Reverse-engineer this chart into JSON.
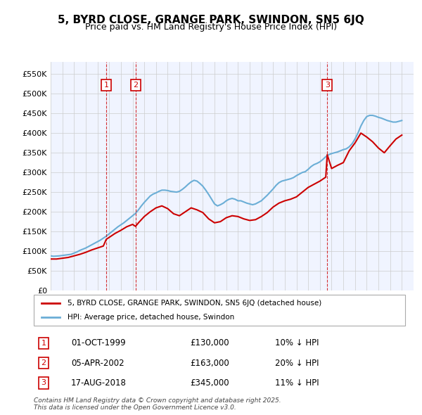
{
  "title": "5, BYRD CLOSE, GRANGE PARK, SWINDON, SN5 6JQ",
  "subtitle": "Price paid vs. HM Land Registry's House Price Index (HPI)",
  "legend_line1": "5, BYRD CLOSE, GRANGE PARK, SWINDON, SN5 6JQ (detached house)",
  "legend_line2": "HPI: Average price, detached house, Swindon",
  "footer": "Contains HM Land Registry data © Crown copyright and database right 2025.\nThis data is licensed under the Open Government Licence v3.0.",
  "ylim": [
    0,
    580000
  ],
  "yticks": [
    0,
    50000,
    100000,
    150000,
    200000,
    250000,
    300000,
    350000,
    400000,
    450000,
    500000,
    550000
  ],
  "ytick_labels": [
    "£0",
    "£50K",
    "£100K",
    "£150K",
    "£200K",
    "£250K",
    "£300K",
    "£350K",
    "£400K",
    "£450K",
    "£500K",
    "£550K"
  ],
  "xlim_start": 1995.0,
  "xlim_end": 2026.0,
  "sales": [
    {
      "num": 1,
      "date": "01-OCT-1999",
      "price": 130000,
      "hpi_diff": "10% ↓ HPI",
      "year": 1999.75
    },
    {
      "num": 2,
      "date": "05-APR-2002",
      "price": 163000,
      "hpi_diff": "20% ↓ HPI",
      "year": 2002.25
    },
    {
      "num": 3,
      "date": "17-AUG-2018",
      "price": 345000,
      "hpi_diff": "11% ↓ HPI",
      "year": 2018.625
    }
  ],
  "hpi_color": "#6baed6",
  "price_color": "#cc0000",
  "background_color": "#ffffff",
  "plot_bg_color": "#f0f4ff",
  "grid_color": "#cccccc",
  "marker_box_color": "#cc0000",
  "vline_color": "#cc0000",
  "hpi_data_x": [
    1995.0,
    1995.25,
    1995.5,
    1995.75,
    1996.0,
    1996.25,
    1996.5,
    1996.75,
    1997.0,
    1997.25,
    1997.5,
    1997.75,
    1998.0,
    1998.25,
    1998.5,
    1998.75,
    1999.0,
    1999.25,
    1999.5,
    1999.75,
    2000.0,
    2000.25,
    2000.5,
    2000.75,
    2001.0,
    2001.25,
    2001.5,
    2001.75,
    2002.0,
    2002.25,
    2002.5,
    2002.75,
    2003.0,
    2003.25,
    2003.5,
    2003.75,
    2004.0,
    2004.25,
    2004.5,
    2004.75,
    2005.0,
    2005.25,
    2005.5,
    2005.75,
    2006.0,
    2006.25,
    2006.5,
    2006.75,
    2007.0,
    2007.25,
    2007.5,
    2007.75,
    2008.0,
    2008.25,
    2008.5,
    2008.75,
    2009.0,
    2009.25,
    2009.5,
    2009.75,
    2010.0,
    2010.25,
    2010.5,
    2010.75,
    2011.0,
    2011.25,
    2011.5,
    2011.75,
    2012.0,
    2012.25,
    2012.5,
    2012.75,
    2013.0,
    2013.25,
    2013.5,
    2013.75,
    2014.0,
    2014.25,
    2014.5,
    2014.75,
    2015.0,
    2015.25,
    2015.5,
    2015.75,
    2016.0,
    2016.25,
    2016.5,
    2016.75,
    2017.0,
    2017.25,
    2017.5,
    2017.75,
    2018.0,
    2018.25,
    2018.5,
    2018.75,
    2019.0,
    2019.25,
    2019.5,
    2019.75,
    2020.0,
    2020.25,
    2020.5,
    2020.75,
    2021.0,
    2021.25,
    2021.5,
    2021.75,
    2022.0,
    2022.25,
    2022.5,
    2022.75,
    2023.0,
    2023.25,
    2023.5,
    2023.75,
    2024.0,
    2024.25,
    2024.5,
    2024.75,
    2025.0
  ],
  "hpi_data_y": [
    88000,
    87000,
    87500,
    88000,
    89000,
    90000,
    91000,
    92000,
    95000,
    98000,
    102000,
    105000,
    108000,
    112000,
    116000,
    120000,
    124000,
    128000,
    133000,
    138000,
    144000,
    150000,
    156000,
    162000,
    167000,
    172000,
    178000,
    184000,
    190000,
    196000,
    205000,
    215000,
    224000,
    232000,
    240000,
    245000,
    248000,
    252000,
    255000,
    255000,
    254000,
    252000,
    251000,
    250000,
    252000,
    257000,
    263000,
    270000,
    276000,
    280000,
    278000,
    272000,
    265000,
    255000,
    244000,
    232000,
    220000,
    215000,
    218000,
    222000,
    228000,
    232000,
    234000,
    232000,
    228000,
    228000,
    225000,
    222000,
    220000,
    218000,
    220000,
    224000,
    228000,
    235000,
    242000,
    250000,
    258000,
    267000,
    274000,
    278000,
    280000,
    282000,
    284000,
    287000,
    292000,
    296000,
    300000,
    302000,
    308000,
    315000,
    320000,
    323000,
    327000,
    333000,
    340000,
    345000,
    348000,
    350000,
    352000,
    355000,
    358000,
    360000,
    365000,
    373000,
    385000,
    400000,
    418000,
    432000,
    442000,
    445000,
    445000,
    443000,
    440000,
    438000,
    435000,
    432000,
    430000,
    428000,
    428000,
    430000,
    432000
  ],
  "price_data_x": [
    1995.0,
    1995.5,
    1996.0,
    1996.5,
    1997.0,
    1997.5,
    1998.0,
    1998.5,
    1999.0,
    1999.5,
    1999.75,
    2000.0,
    2000.5,
    2001.0,
    2001.5,
    2002.0,
    2002.25,
    2002.5,
    2003.0,
    2003.5,
    2004.0,
    2004.5,
    2005.0,
    2005.5,
    2006.0,
    2006.5,
    2007.0,
    2007.5,
    2008.0,
    2008.5,
    2009.0,
    2009.5,
    2010.0,
    2010.5,
    2011.0,
    2011.5,
    2012.0,
    2012.5,
    2013.0,
    2013.5,
    2014.0,
    2014.5,
    2015.0,
    2015.5,
    2016.0,
    2016.5,
    2017.0,
    2017.5,
    2018.0,
    2018.5,
    2018.625,
    2019.0,
    2019.5,
    2020.0,
    2020.5,
    2021.0,
    2021.5,
    2022.0,
    2022.5,
    2023.0,
    2023.5,
    2024.0,
    2024.5,
    2025.0
  ],
  "price_data_y": [
    80000,
    80000,
    82000,
    84000,
    88000,
    92000,
    97000,
    103000,
    108000,
    113000,
    130000,
    135000,
    145000,
    153000,
    162000,
    168000,
    163000,
    172000,
    188000,
    200000,
    210000,
    215000,
    208000,
    195000,
    190000,
    200000,
    210000,
    205000,
    198000,
    182000,
    172000,
    175000,
    185000,
    190000,
    188000,
    182000,
    178000,
    180000,
    188000,
    198000,
    212000,
    222000,
    228000,
    232000,
    238000,
    250000,
    262000,
    270000,
    278000,
    288000,
    345000,
    310000,
    318000,
    325000,
    355000,
    375000,
    400000,
    390000,
    378000,
    362000,
    350000,
    368000,
    385000,
    395000
  ]
}
